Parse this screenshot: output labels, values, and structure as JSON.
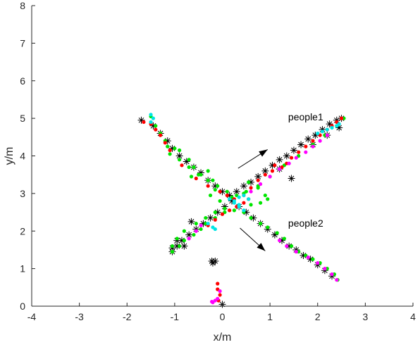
{
  "chart_data": {
    "type": "scatter",
    "title": "",
    "xlabel": "x/m",
    "ylabel": "y/m",
    "xlim": [
      -4,
      4
    ],
    "ylim": [
      0,
      8
    ],
    "xticks": [
      "-4",
      "-3",
      "-2",
      "-1",
      "0",
      "1",
      "2",
      "3",
      "4"
    ],
    "yticks": [
      "0",
      "1",
      "2",
      "3",
      "4",
      "5",
      "6",
      "7",
      "8"
    ],
    "grid": false,
    "legend": "none",
    "annotations": [
      {
        "text": "people1",
        "x": 1.75,
        "y": 4.95
      },
      {
        "text": "people2",
        "x": 1.75,
        "y": 2.12
      }
    ],
    "arrows": [
      {
        "from": [
          0.33,
          3.67
        ],
        "to": [
          0.95,
          4.17
        ]
      },
      {
        "from": [
          0.37,
          2.08
        ],
        "to": [
          0.9,
          1.47
        ]
      }
    ],
    "series": [
      {
        "marker": "asterisk",
        "color": "#000000",
        "x": [
          -1.7,
          -1.45,
          -1.3,
          -1.15,
          -1.05,
          -0.9,
          -0.75,
          -0.6,
          -0.45,
          -0.3,
          -0.15,
          0.0,
          0.15,
          0.3,
          0.45,
          0.6,
          0.75,
          0.9,
          1.05,
          1.2,
          1.35,
          1.5,
          1.65,
          1.8,
          1.95,
          2.1,
          2.25,
          2.4,
          2.5,
          -1.05,
          -0.95,
          -0.85,
          -0.7,
          -0.55,
          -0.4,
          -0.25,
          -0.1,
          0.05,
          0.2,
          0.35,
          0.5,
          0.65,
          0.8,
          0.95,
          1.1,
          1.25,
          1.4,
          1.55,
          1.7,
          1.85,
          2.0,
          2.15,
          2.3,
          -0.15,
          -0.2,
          -0.22,
          0.0,
          1.2,
          1.45,
          1.9,
          2.2,
          2.45,
          -0.8,
          -0.95,
          -1.05,
          -0.65
        ],
        "y": [
          4.95,
          4.8,
          4.6,
          4.4,
          4.2,
          4.0,
          3.85,
          3.7,
          3.55,
          3.35,
          3.2,
          3.05,
          2.95,
          3.05,
          3.2,
          3.3,
          3.45,
          3.6,
          3.75,
          3.9,
          4.0,
          4.15,
          4.3,
          4.45,
          4.55,
          4.7,
          4.85,
          4.95,
          5.0,
          1.45,
          1.6,
          1.75,
          1.9,
          2.05,
          2.2,
          2.35,
          2.5,
          2.65,
          2.8,
          2.65,
          2.5,
          2.35,
          2.2,
          2.05,
          1.9,
          1.75,
          1.6,
          1.5,
          1.35,
          1.25,
          1.1,
          0.95,
          0.8,
          1.2,
          1.15,
          1.2,
          0.05,
          3.65,
          3.4,
          4.3,
          4.55,
          4.75,
          1.6,
          1.75,
          1.55,
          2.25
        ]
      },
      {
        "name": "",
        "color": "#00e600",
        "marker": "dot",
        "x": [
          -1.5,
          -1.4,
          -1.3,
          -1.2,
          -1.15,
          -1.1,
          -1.0,
          -0.9,
          -0.7,
          -0.6,
          -0.65,
          -0.45,
          -0.3,
          -0.2,
          -0.15,
          -0.25,
          -0.05,
          0.2,
          0.45,
          0.55,
          0.75,
          0.9,
          0.95,
          0.8,
          0.6,
          0.35,
          0.05,
          -0.15,
          -0.35,
          -0.55,
          -0.8,
          -0.95,
          -1.05,
          -1.05,
          -0.9,
          -0.8,
          -0.6,
          -0.45,
          -0.35,
          -0.15,
          0.05,
          0.25,
          0.45,
          0.6,
          0.8,
          0.95,
          1.15,
          1.3,
          1.45,
          1.6,
          1.75,
          1.9,
          2.05,
          2.2,
          2.35,
          2.42,
          -0.9,
          -0.7,
          -0.5,
          -0.3,
          -0.1,
          0.1,
          0.3,
          0.5,
          0.75,
          1.0,
          1.3,
          1.6,
          1.9,
          2.15,
          2.4,
          2.55
        ],
        "y": [
          5.05,
          4.8,
          4.6,
          4.4,
          4.25,
          4.05,
          4.2,
          4.15,
          3.9,
          3.7,
          3.45,
          3.5,
          3.6,
          3.35,
          3.1,
          2.95,
          2.8,
          2.9,
          3.0,
          3.3,
          3.15,
          2.95,
          2.85,
          2.75,
          2.7,
          2.65,
          2.6,
          2.5,
          2.35,
          2.2,
          2.0,
          1.8,
          1.6,
          1.45,
          1.6,
          1.75,
          1.9,
          2.05,
          2.2,
          2.35,
          2.5,
          2.55,
          2.5,
          2.35,
          2.2,
          2.1,
          1.95,
          1.8,
          1.6,
          1.45,
          1.35,
          1.25,
          1.15,
          1.0,
          0.85,
          0.7,
          3.9,
          3.7,
          3.5,
          3.35,
          3.2,
          3.05,
          2.95,
          3.05,
          3.2,
          3.45,
          3.75,
          4.0,
          4.3,
          4.55,
          4.8,
          5.0
        ]
      },
      {
        "name": "",
        "color": "#ff0000",
        "marker": "dot",
        "x": [
          -1.65,
          -1.5,
          -1.4,
          -1.3,
          -1.2,
          -1.1,
          -0.85,
          -0.55,
          -0.3,
          -0.05,
          0.1,
          0.25,
          0.45,
          0.6,
          0.75,
          0.9,
          1.05,
          1.1,
          1.25,
          1.35,
          1.45,
          1.6,
          1.75,
          1.9,
          2.05,
          2.2,
          2.3,
          2.4,
          2.5,
          -0.3,
          -0.15,
          0.0,
          0.15,
          0.3,
          0.45,
          0.55,
          -0.1,
          -0.1,
          -0.05,
          -0.08
        ],
        "y": [
          4.9,
          4.85,
          4.7,
          4.55,
          4.35,
          4.15,
          3.75,
          3.4,
          3.2,
          3.05,
          2.95,
          2.85,
          2.95,
          3.15,
          3.35,
          3.5,
          3.6,
          3.75,
          3.7,
          3.8,
          3.95,
          4.1,
          4.25,
          4.4,
          4.55,
          4.7,
          4.8,
          4.9,
          5.0,
          2.15,
          2.3,
          2.45,
          2.55,
          2.65,
          2.75,
          2.85,
          0.6,
          0.45,
          0.3,
          0.15
        ]
      },
      {
        "name": "",
        "color": "#ff00ff",
        "marker": "dot",
        "x": [
          0.6,
          0.8,
          1.0,
          1.2,
          1.4,
          1.55,
          1.75,
          1.9,
          2.05,
          2.2,
          -0.7,
          -0.55,
          -0.45,
          1.2,
          1.35,
          1.55,
          1.8,
          2.0,
          2.15,
          2.3,
          2.4,
          -0.2,
          -0.1,
          -0.05,
          -0.15,
          -0.22
        ],
        "y": [
          3.05,
          3.25,
          3.45,
          3.65,
          3.8,
          3.95,
          4.1,
          4.25,
          4.4,
          4.55,
          1.8,
          2.0,
          2.15,
          1.75,
          1.6,
          1.45,
          1.3,
          1.15,
          1.0,
          0.85,
          0.7,
          0.1,
          0.2,
          0.4,
          0.15,
          0.12
        ]
      },
      {
        "name": "",
        "color": "#00e5e5",
        "marker": "dot",
        "x": [
          -1.5,
          -1.45,
          -1.5,
          0.15,
          0.25,
          0.35,
          0.45,
          0.35,
          0.25,
          0.35,
          0.45,
          0.55,
          2.0,
          2.1,
          2.2,
          2.3,
          2.4,
          2.45,
          -0.3,
          -0.2,
          -0.15
        ],
        "y": [
          5.1,
          5.0,
          4.9,
          2.85,
          2.75,
          2.65,
          2.55,
          2.7,
          2.8,
          2.9,
          2.95,
          2.85,
          4.6,
          4.65,
          4.7,
          4.75,
          4.8,
          4.85,
          2.2,
          2.1,
          2.05
        ]
      }
    ]
  }
}
